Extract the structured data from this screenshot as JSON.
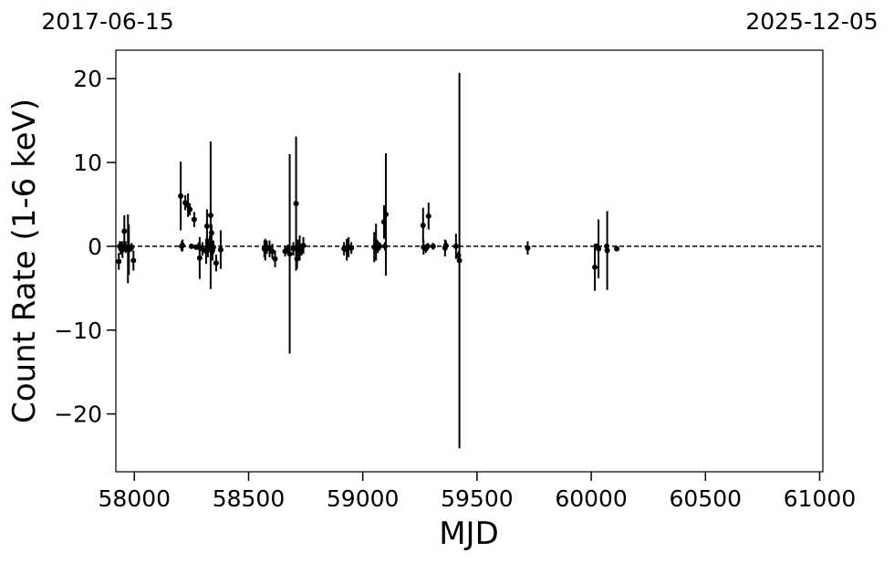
{
  "chart_data": {
    "type": "scatter",
    "title": "",
    "xlabel": "MJD",
    "ylabel": "Count Rate (1-6 keV)",
    "top_axis_labels": [
      "2017-06-15",
      "2025-12-05"
    ],
    "xlim": [
      57919,
      61014
    ],
    "ylim": [
      -26.9,
      23.4
    ],
    "xticks": [
      58000,
      58500,
      59000,
      59500,
      60000,
      60500,
      61000
    ],
    "yticks": [
      -20,
      -10,
      0,
      10,
      20
    ],
    "ytick_labels": [
      "−20",
      "−10",
      "0",
      "10",
      "20"
    ],
    "reference_line": {
      "y": 0,
      "style": "dashed"
    },
    "grid": false,
    "marker_color": "#000000",
    "points": [
      {
        "x": 57932,
        "y": -1.8,
        "err": 1.0
      },
      {
        "x": 57936,
        "y": 0.0,
        "err": 0.6
      },
      {
        "x": 57940,
        "y": -0.2,
        "err": 0.8
      },
      {
        "x": 57948,
        "y": -0.4,
        "err": 1.0
      },
      {
        "x": 57956,
        "y": 1.8,
        "err": 1.9
      },
      {
        "x": 57962,
        "y": -0.1,
        "err": 0.7
      },
      {
        "x": 57972,
        "y": -0.3,
        "err": 4.1
      },
      {
        "x": 57976,
        "y": -0.4,
        "err": 3.0
      },
      {
        "x": 57988,
        "y": -0.1,
        "err": 0.5
      },
      {
        "x": 57996,
        "y": -1.7,
        "err": 1.2
      },
      {
        "x": 58203,
        "y": 6.0,
        "err": 4.1
      },
      {
        "x": 58207,
        "y": 0.0,
        "err": 0.6
      },
      {
        "x": 58211,
        "y": 0.1,
        "err": 0.7
      },
      {
        "x": 58223,
        "y": 5.2,
        "err": 0.9
      },
      {
        "x": 58235,
        "y": 4.9,
        "err": 1.4
      },
      {
        "x": 58243,
        "y": 4.4,
        "err": 0.7
      },
      {
        "x": 58250,
        "y": 0.0,
        "err": 0.3
      },
      {
        "x": 58262,
        "y": 3.2,
        "err": 0.9
      },
      {
        "x": 58270,
        "y": -0.1,
        "err": 0.3
      },
      {
        "x": 58282,
        "y": 0.0,
        "err": 0.5
      },
      {
        "x": 58286,
        "y": -1.4,
        "err": 2.5
      },
      {
        "x": 58298,
        "y": -0.3,
        "err": 0.8
      },
      {
        "x": 58314,
        "y": -0.6,
        "err": 1.5
      },
      {
        "x": 58318,
        "y": 2.4,
        "err": 2.0
      },
      {
        "x": 58322,
        "y": -0.2,
        "err": 1.1
      },
      {
        "x": 58330,
        "y": 0.3,
        "err": 1.0
      },
      {
        "x": 58334,
        "y": 3.7,
        "err": 8.8
      },
      {
        "x": 58338,
        "y": 1.6,
        "err": 1.0
      },
      {
        "x": 58342,
        "y": -0.5,
        "err": 1.2
      },
      {
        "x": 58346,
        "y": -0.1,
        "err": 0.8
      },
      {
        "x": 58358,
        "y": -2.0,
        "err": 1.0
      },
      {
        "x": 58378,
        "y": -0.4,
        "err": 2.3
      },
      {
        "x": 58569,
        "y": -0.3,
        "err": 1.0
      },
      {
        "x": 58573,
        "y": -0.4,
        "err": 1.3
      },
      {
        "x": 58580,
        "y": -0.1,
        "err": 0.8
      },
      {
        "x": 58592,
        "y": -0.3,
        "err": 1.0
      },
      {
        "x": 58604,
        "y": -0.6,
        "err": 0.9
      },
      {
        "x": 58616,
        "y": -1.5,
        "err": 1.0
      },
      {
        "x": 58660,
        "y": -0.6,
        "err": 0.6
      },
      {
        "x": 58672,
        "y": -0.4,
        "err": 0.6
      },
      {
        "x": 58680,
        "y": -0.9,
        "err": 11.9
      },
      {
        "x": 58696,
        "y": -0.3,
        "err": 0.8
      },
      {
        "x": 58708,
        "y": 5.1,
        "err": 8.0
      },
      {
        "x": 58712,
        "y": -1.5,
        "err": 1.2
      },
      {
        "x": 58716,
        "y": -0.2,
        "err": 1.0
      },
      {
        "x": 58724,
        "y": -0.2,
        "err": 1.5
      },
      {
        "x": 58732,
        "y": -0.4,
        "err": 0.7
      },
      {
        "x": 58740,
        "y": 0.1,
        "err": 1.0
      },
      {
        "x": 58918,
        "y": -0.3,
        "err": 0.8
      },
      {
        "x": 58930,
        "y": -0.4,
        "err": 1.3
      },
      {
        "x": 58938,
        "y": -0.1,
        "err": 1.2
      },
      {
        "x": 58950,
        "y": -0.2,
        "err": 0.7
      },
      {
        "x": 59050,
        "y": -0.1,
        "err": 1.8
      },
      {
        "x": 59058,
        "y": 0.5,
        "err": 2.2
      },
      {
        "x": 59066,
        "y": -0.2,
        "err": 0.6
      },
      {
        "x": 59074,
        "y": 0.0,
        "err": 0.5
      },
      {
        "x": 59093,
        "y": 2.9,
        "err": 2.0
      },
      {
        "x": 59097,
        "y": 0.0,
        "err": 0.5
      },
      {
        "x": 59101,
        "y": 3.8,
        "err": 7.3
      },
      {
        "x": 59264,
        "y": 2.5,
        "err": 2.1
      },
      {
        "x": 59266,
        "y": -0.1,
        "err": 0.9
      },
      {
        "x": 59276,
        "y": -0.3,
        "err": 0.5
      },
      {
        "x": 59284,
        "y": 0.0,
        "err": 0.4
      },
      {
        "x": 59288,
        "y": 3.6,
        "err": 1.6
      },
      {
        "x": 59308,
        "y": 0.0,
        "err": 0.4
      },
      {
        "x": 59360,
        "y": -0.2,
        "err": 1.0
      },
      {
        "x": 59364,
        "y": 0.1,
        "err": 0.6
      },
      {
        "x": 59408,
        "y": 0.0,
        "err": 1.5
      },
      {
        "x": 59419,
        "y": -1.1,
        "err": 0.5
      },
      {
        "x": 59423,
        "y": -1.7,
        "err": 22.4
      },
      {
        "x": 59722,
        "y": -0.2,
        "err": 0.8
      },
      {
        "x": 60016,
        "y": -2.5,
        "err": 2.8
      },
      {
        "x": 60024,
        "y": 0.0,
        "err": 0.3
      },
      {
        "x": 60032,
        "y": -0.3,
        "err": 3.5
      },
      {
        "x": 60068,
        "y": 0.0,
        "err": 0.3
      },
      {
        "x": 60070,
        "y": -0.5,
        "err": 4.7
      },
      {
        "x": 60112,
        "y": -0.3,
        "err": 0.3
      }
    ]
  }
}
